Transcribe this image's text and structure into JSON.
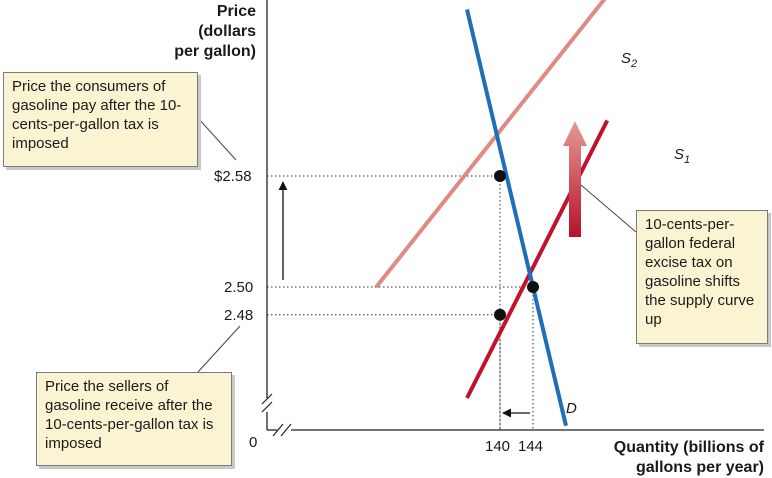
{
  "chart_data": {
    "type": "line",
    "ylabel_lines": [
      "Price",
      "(dollars",
      "per gallon)"
    ],
    "xlabel_lines": [
      "Quantity (billions of",
      "gallons per year)"
    ],
    "origin_label": "0",
    "x_ticks": [
      "140",
      "144"
    ],
    "y_ticks": [
      "$2.58",
      "2.50",
      "2.48"
    ],
    "series": [
      {
        "name": "S1",
        "color": "#c0122d",
        "points": [
          [
            136,
            2.42
          ],
          [
            153,
            2.62
          ]
        ]
      },
      {
        "name": "S2",
        "color": "#e08a84",
        "points": [
          [
            125,
            2.5
          ],
          [
            153,
            2.71
          ]
        ]
      },
      {
        "name": "D",
        "color": "#1e6eb8",
        "points": [
          [
            136,
            2.7
          ],
          [
            148,
            2.4
          ]
        ]
      }
    ],
    "equilibria": [
      {
        "x": 140,
        "y": 2.58
      },
      {
        "x": 144,
        "y": 2.5
      },
      {
        "x": 140,
        "y": 2.48
      }
    ],
    "curve_labels": {
      "S2": "S",
      "S2_sub": "2",
      "S1": "S",
      "S1_sub": "1",
      "D": "D"
    },
    "callouts": {
      "consumers": "Price the consumers of gasoline pay after the 10-cents-per-gallon tax is imposed",
      "sellers": "Price the sellers of gasoline receive after the 10-cents-per-gallon tax is imposed",
      "tax": "10-cents-per-gallon federal excise tax on gasoline shifts the supply curve up"
    },
    "colors": {
      "supply_after": "#e08a84",
      "supply_before": "#c0122d",
      "demand": "#1e6eb8",
      "callout_bg": "#fbf4d2"
    }
  }
}
